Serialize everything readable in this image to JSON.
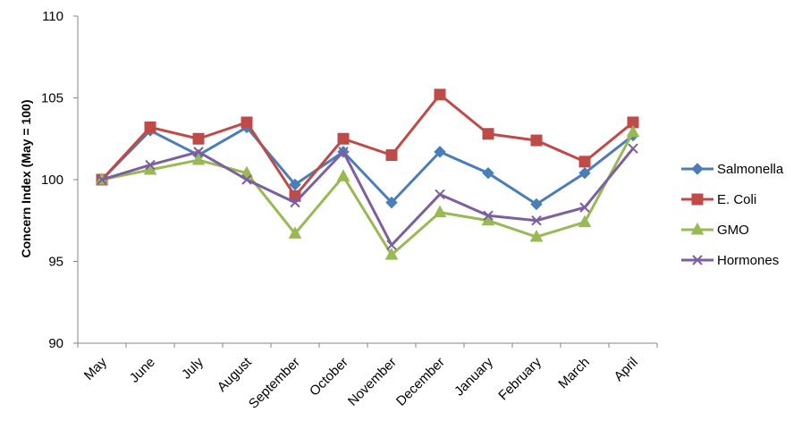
{
  "chart_data": {
    "type": "line",
    "title": "",
    "xlabel": "",
    "ylabel": "Concern Index (May = 100)",
    "ylim": [
      90,
      110
    ],
    "yticks": [
      90,
      95,
      100,
      105,
      110
    ],
    "grid": false,
    "legend_position": "right",
    "categories": [
      "May",
      "June",
      "July",
      "August",
      "September",
      "October",
      "November",
      "December",
      "January",
      "February",
      "March",
      "April"
    ],
    "series": [
      {
        "name": "Salmonella",
        "color": "#4a7ebb",
        "marker": "diamond",
        "values": [
          100.0,
          103.0,
          101.5,
          103.2,
          99.7,
          101.7,
          98.6,
          101.7,
          100.4,
          98.5,
          100.4,
          102.7
        ]
      },
      {
        "name": "E. Coli",
        "color": "#be4b48",
        "marker": "square",
        "values": [
          100.0,
          103.2,
          102.5,
          103.5,
          99.0,
          102.5,
          101.5,
          105.2,
          102.8,
          102.4,
          101.1,
          103.5
        ]
      },
      {
        "name": "GMO",
        "color": "#98b954",
        "marker": "triangle",
        "values": [
          100.0,
          100.6,
          101.2,
          100.4,
          96.7,
          100.2,
          95.4,
          98.0,
          97.5,
          96.5,
          97.4,
          102.9
        ]
      },
      {
        "name": "Hormones",
        "color": "#7d5fa0",
        "marker": "x",
        "values": [
          100.0,
          100.9,
          101.7,
          100.0,
          98.6,
          101.7,
          96.0,
          99.1,
          97.8,
          97.5,
          98.3,
          101.9
        ]
      }
    ]
  }
}
